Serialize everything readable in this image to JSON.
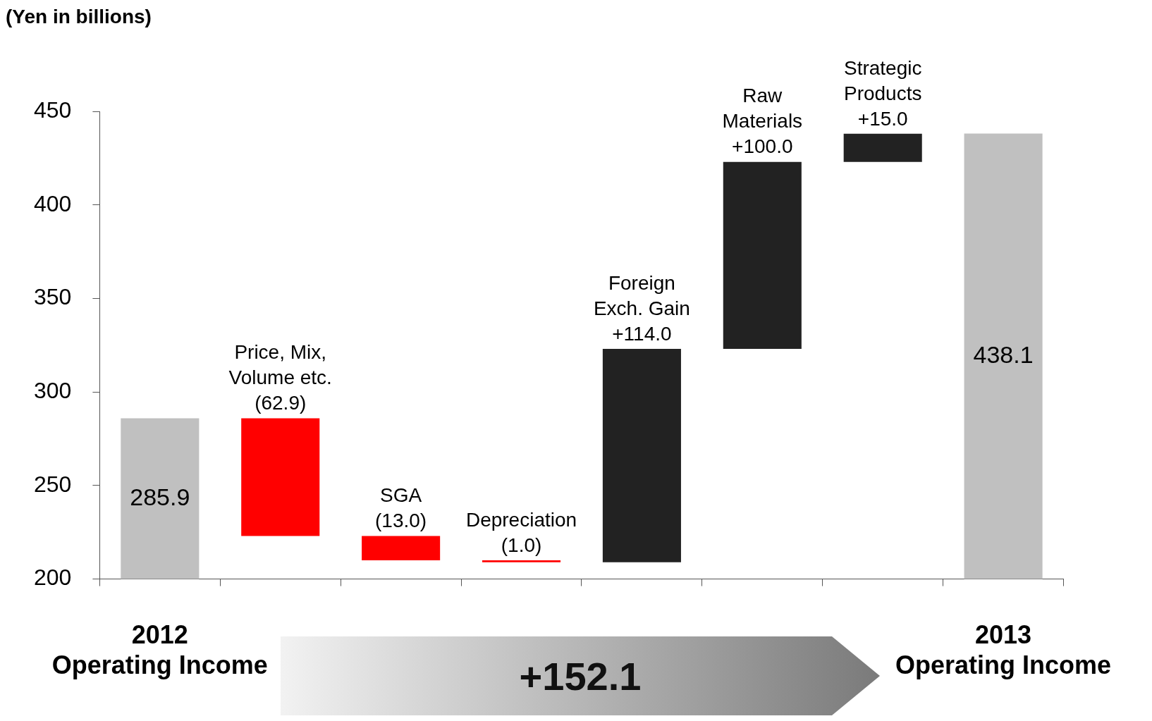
{
  "chart_data": {
    "type": "bar",
    "ylabel": "(Yen in billions)",
    "categories": [
      "2012 Operating Income",
      "Price, Mix, Volume etc.",
      "SGA",
      "Depreciation",
      "Foreign Exch. Gain",
      "Raw Materials",
      "Strategic Products",
      "2013 Operating Income"
    ],
    "values": [
      285.9,
      -62.9,
      -13.0,
      -1.0,
      114.0,
      100.0,
      15.0,
      438.1
    ],
    "base": [
      null,
      285.9,
      223.0,
      210.0,
      209.0,
      323.0,
      423.0,
      null
    ],
    "value_labels": [
      "285.9",
      "(62.9)",
      "(13.0)",
      "(1.0)",
      "+114.0",
      "+100.0",
      "+15.0",
      "438.1"
    ],
    "colors": [
      "#c0c0c0",
      "#ff0000",
      "#ff0000",
      "#ff0000",
      "#222222",
      "#222222",
      "#222222",
      "#c0c0c0"
    ],
    "ylim": [
      200,
      450
    ],
    "yticks": [
      200,
      250,
      300,
      350,
      400,
      450
    ],
    "grid": false,
    "legend": false,
    "annotations": [
      "+152.1"
    ]
  }
}
